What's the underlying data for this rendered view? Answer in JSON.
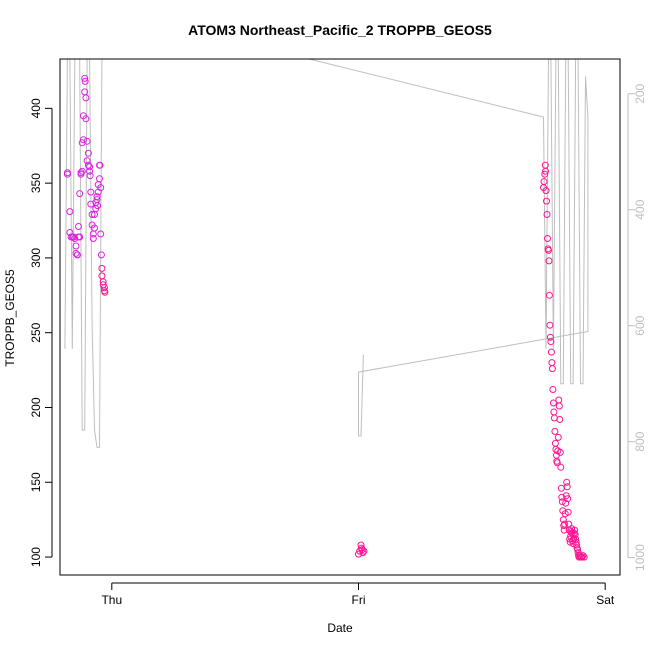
{
  "chart_data": {
    "type": "scatter",
    "title": "ATOM3 Northeast_Pacific_2 TROPPB_GEOS5",
    "xlabel": "Date",
    "ylabel": "TROPPB_GEOS5",
    "x_ticks": [
      "Thu",
      "Fri",
      "Sat"
    ],
    "x_tick_positions_days": [
      0,
      1,
      2
    ],
    "xlim_days": [
      -0.21,
      2.06
    ],
    "y_ticks": [
      100,
      150,
      200,
      250,
      300,
      350,
      400
    ],
    "ylim": [
      88,
      433
    ],
    "right_axis_ticks": [
      200,
      400,
      600,
      800,
      1000
    ],
    "right_axis_range": [
      1030,
      140
    ],
    "right_axis_reversed": true,
    "grid": false,
    "colors": {
      "points": "#ff1493",
      "points_alt": "#e020e0",
      "line": "#bebebe",
      "right_axis": "#bebebe",
      "axis": "#000000"
    },
    "series": [
      {
        "kind": "points",
        "values": [
          [
            -0.18,
            357
          ],
          [
            -0.18,
            356
          ],
          [
            -0.17,
            331
          ],
          [
            -0.17,
            317
          ],
          [
            -0.165,
            314
          ],
          [
            -0.16,
            314
          ],
          [
            -0.155,
            314
          ],
          [
            -0.15,
            313
          ],
          [
            -0.145,
            308
          ],
          [
            -0.145,
            303
          ],
          [
            -0.14,
            302
          ],
          [
            -0.14,
            302
          ],
          [
            -0.135,
            314
          ],
          [
            -0.135,
            321
          ],
          [
            -0.13,
            314
          ],
          [
            -0.13,
            343
          ],
          [
            -0.125,
            357
          ],
          [
            -0.125,
            356
          ],
          [
            -0.12,
            358
          ],
          [
            -0.12,
            377
          ],
          [
            -0.115,
            379
          ],
          [
            -0.115,
            395
          ],
          [
            -0.11,
            411
          ],
          [
            -0.11,
            420
          ],
          [
            -0.108,
            418
          ],
          [
            -0.105,
            407
          ],
          [
            -0.105,
            393
          ],
          [
            -0.1,
            378
          ],
          [
            -0.1,
            365
          ],
          [
            -0.095,
            370
          ],
          [
            -0.095,
            362
          ],
          [
            -0.09,
            361
          ],
          [
            -0.09,
            358
          ],
          [
            -0.088,
            355
          ],
          [
            -0.085,
            344
          ],
          [
            -0.085,
            336
          ],
          [
            -0.08,
            329
          ],
          [
            -0.08,
            322
          ],
          [
            -0.075,
            316
          ],
          [
            -0.075,
            313
          ],
          [
            -0.07,
            320
          ],
          [
            -0.07,
            329
          ],
          [
            -0.065,
            333
          ],
          [
            -0.065,
            337
          ],
          [
            -0.06,
            339
          ],
          [
            -0.06,
            341
          ],
          [
            -0.058,
            335
          ],
          [
            -0.055,
            344
          ],
          [
            -0.055,
            349
          ],
          [
            -0.05,
            353
          ],
          [
            -0.05,
            362
          ],
          [
            -0.048,
            362
          ],
          [
            -0.045,
            347
          ],
          [
            -0.045,
            316
          ],
          [
            -0.042,
            302
          ],
          [
            -0.04,
            293
          ],
          [
            -0.04,
            288
          ],
          [
            -0.035,
            284
          ],
          [
            -0.035,
            282
          ],
          [
            -0.03,
            280
          ],
          [
            -0.03,
            278
          ],
          [
            -0.028,
            277
          ],
          [
            1.0,
            102
          ],
          [
            1.005,
            104
          ],
          [
            1.01,
            108
          ],
          [
            1.012,
            106
          ],
          [
            1.015,
            105
          ],
          [
            1.018,
            103
          ],
          [
            1.022,
            104
          ],
          [
            1.75,
            347
          ],
          [
            1.752,
            351
          ],
          [
            1.755,
            356
          ],
          [
            1.757,
            362
          ],
          [
            1.758,
            358
          ],
          [
            1.76,
            345
          ],
          [
            1.762,
            338
          ],
          [
            1.764,
            329
          ],
          [
            1.766,
            313
          ],
          [
            1.768,
            306
          ],
          [
            1.77,
            305
          ],
          [
            1.772,
            298
          ],
          [
            1.774,
            275
          ],
          [
            1.776,
            255
          ],
          [
            1.778,
            247
          ],
          [
            1.78,
            244
          ],
          [
            1.782,
            237
          ],
          [
            1.784,
            230
          ],
          [
            1.786,
            226
          ],
          [
            1.788,
            212
          ],
          [
            1.79,
            203
          ],
          [
            1.792,
            197
          ],
          [
            1.794,
            193
          ],
          [
            1.796,
            184
          ],
          [
            1.798,
            176
          ],
          [
            1.8,
            172
          ],
          [
            1.802,
            168
          ],
          [
            1.804,
            164
          ],
          [
            1.806,
            163
          ],
          [
            1.808,
            171
          ],
          [
            1.81,
            180
          ],
          [
            1.812,
            205
          ],
          [
            1.814,
            201
          ],
          [
            1.816,
            192
          ],
          [
            1.818,
            170
          ],
          [
            1.82,
            160
          ],
          [
            1.822,
            146
          ],
          [
            1.824,
            140
          ],
          [
            1.826,
            137
          ],
          [
            1.828,
            131
          ],
          [
            1.83,
            125
          ],
          [
            1.832,
            121
          ],
          [
            1.834,
            118
          ],
          [
            1.836,
            122
          ],
          [
            1.838,
            129
          ],
          [
            1.84,
            136
          ],
          [
            1.842,
            141
          ],
          [
            1.844,
            150
          ],
          [
            1.846,
            147
          ],
          [
            1.848,
            139
          ],
          [
            1.85,
            130
          ],
          [
            1.852,
            122
          ],
          [
            1.854,
            118
          ],
          [
            1.856,
            112
          ],
          [
            1.858,
            110
          ],
          [
            1.86,
            114
          ],
          [
            1.862,
            117
          ],
          [
            1.864,
            119
          ],
          [
            1.866,
            116
          ],
          [
            1.868,
            111
          ],
          [
            1.87,
            109
          ],
          [
            1.872,
            112
          ],
          [
            1.874,
            116
          ],
          [
            1.876,
            118
          ],
          [
            1.878,
            115
          ],
          [
            1.88,
            112
          ],
          [
            1.882,
            110
          ],
          [
            1.884,
            108
          ],
          [
            1.886,
            106
          ],
          [
            1.888,
            105
          ],
          [
            1.89,
            103
          ],
          [
            1.892,
            101
          ],
          [
            1.894,
            100
          ],
          [
            1.898,
            101
          ],
          [
            1.902,
            100
          ],
          [
            1.906,
            100
          ],
          [
            1.91,
            101
          ],
          [
            1.915,
            100
          ]
        ]
      },
      {
        "kind": "line",
        "axis": "right",
        "values": [
          [
            -0.19,
            640
          ],
          [
            -0.18,
            140
          ],
          [
            -0.17,
            140
          ],
          [
            -0.16,
            640
          ],
          [
            -0.15,
            140
          ],
          [
            -0.13,
            140
          ],
          [
            -0.12,
            780
          ],
          [
            -0.11,
            780
          ],
          [
            -0.1,
            140
          ],
          [
            -0.09,
            140
          ],
          [
            -0.08,
            600
          ],
          [
            -0.07,
            780
          ],
          [
            -0.06,
            810
          ],
          [
            -0.05,
            810
          ],
          [
            -0.04,
            140
          ],
          [
            -0.03,
            140
          ],
          [
            0.8,
            140
          ],
          [
            1.75,
            240
          ],
          [
            1.76,
            640
          ],
          [
            1.77,
            140
          ],
          [
            1.78,
            140
          ],
          [
            1.79,
            640
          ],
          [
            1.8,
            140
          ],
          [
            1.81,
            140
          ],
          [
            1.82,
            700
          ],
          [
            1.83,
            700
          ],
          [
            1.84,
            140
          ],
          [
            1.85,
            140
          ],
          [
            1.86,
            700
          ],
          [
            1.87,
            700
          ],
          [
            1.88,
            140
          ],
          [
            1.89,
            140
          ],
          [
            1.9,
            700
          ],
          [
            1.91,
            700
          ],
          [
            1.92,
            170
          ],
          [
            1.93,
            240
          ],
          [
            1.93,
            610
          ],
          [
            1.0,
            680
          ],
          [
            1.0,
            790
          ],
          [
            1.01,
            790
          ],
          [
            1.02,
            650
          ]
        ]
      }
    ]
  }
}
